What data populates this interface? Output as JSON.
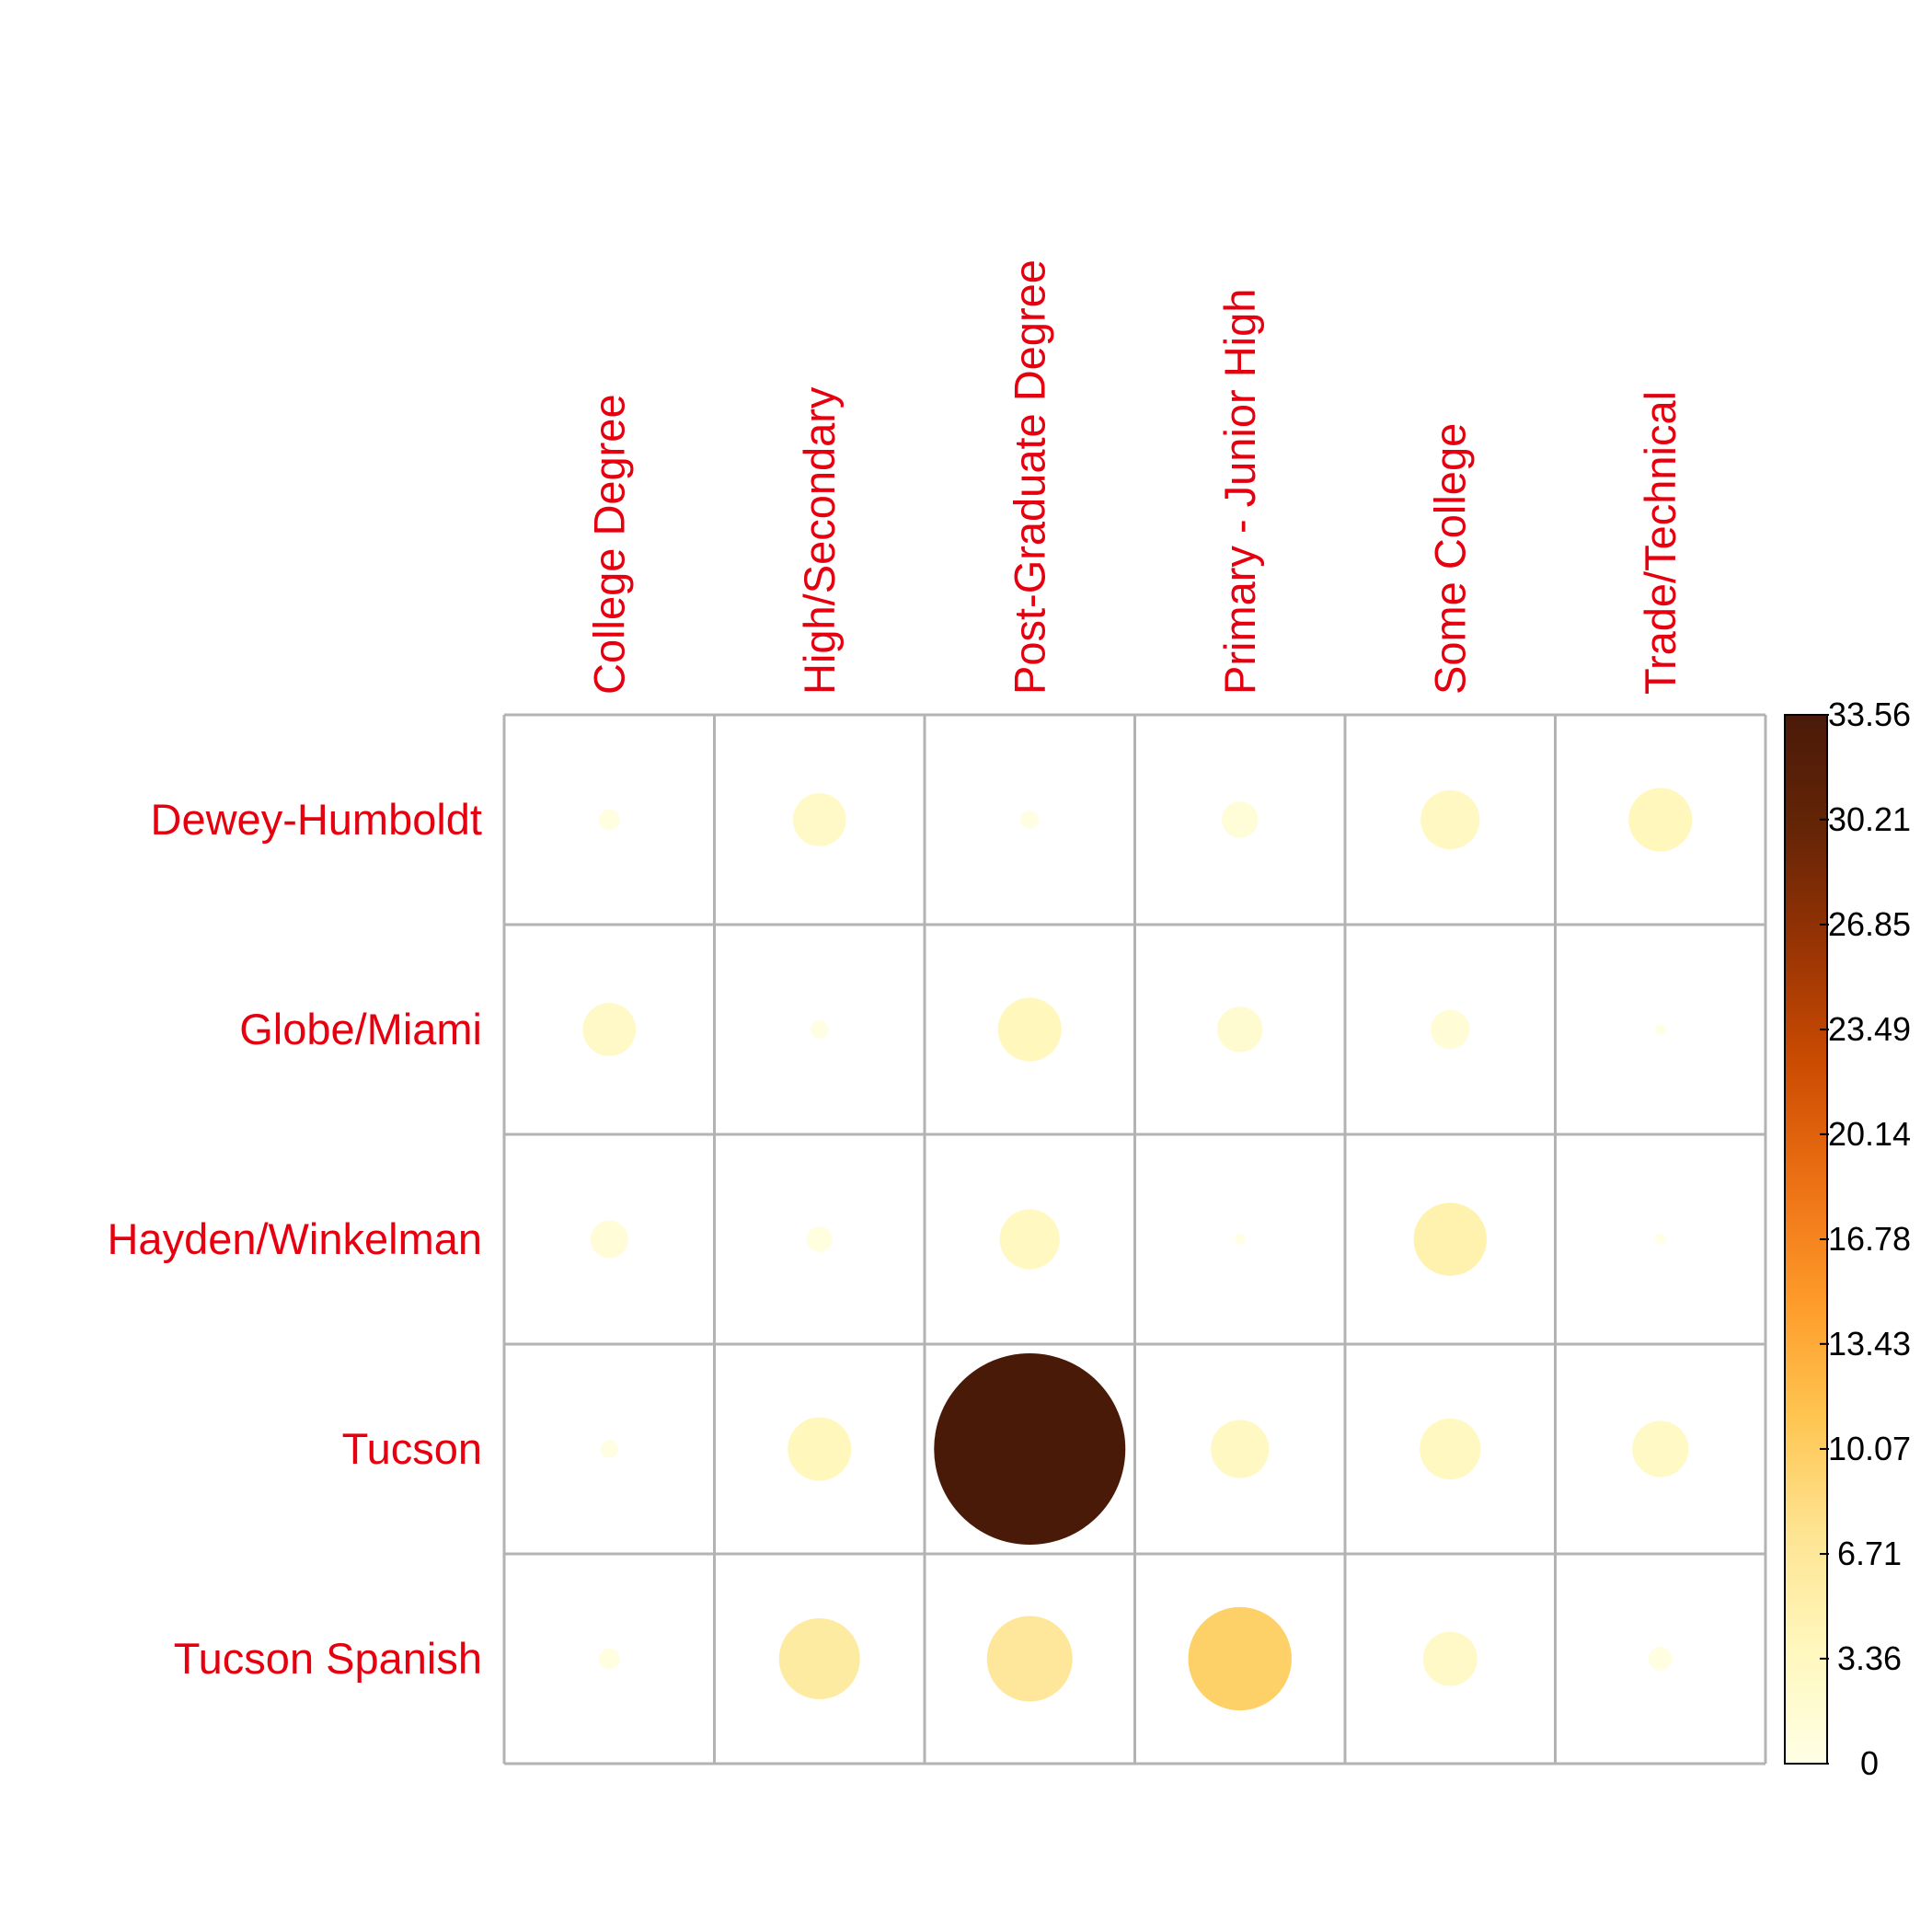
{
  "chart_data": {
    "type": "heatmap",
    "title": "",
    "xlabel": "",
    "ylabel": "",
    "columns": [
      "College Degree",
      "High/Secondary",
      "Post-Graduate Degree",
      "Primary - Junior High",
      "Some College",
      "Trade/Technical"
    ],
    "rows": [
      "Dewey-Humboldt",
      "Globe/Miami",
      "Hayden/Winkelman",
      "Tucson",
      "Tucson Spanish"
    ],
    "values": [
      [
        0.4,
        2.6,
        0.3,
        1.2,
        3.2,
        3.7
      ],
      [
        2.6,
        0.3,
        3.7,
        1.9,
        1.4,
        0.1
      ],
      [
        1.3,
        0.6,
        3.3,
        0.1,
        4.9,
        0.1
      ],
      [
        0.3,
        3.7,
        33.56,
        3.1,
        3.4,
        2.9
      ],
      [
        0.4,
        6.0,
        6.7,
        9.8,
        2.7,
        0.5
      ]
    ],
    "color_scale": {
      "min": 0,
      "max": 33.56,
      "ticks": [
        "0",
        "3.36",
        "6.71",
        "10.07",
        "13.43",
        "16.78",
        "20.14",
        "23.49",
        "26.85",
        "30.21",
        "33.56"
      ],
      "colors": [
        "#FFFFE5",
        "#FFF7BC",
        "#FEE391",
        "#FEC44F",
        "#FE9929",
        "#EC7014",
        "#CC4C02",
        "#993404",
        "#662506",
        "#4A1A09"
      ]
    },
    "label_color": "#E6000F",
    "grid": true
  }
}
